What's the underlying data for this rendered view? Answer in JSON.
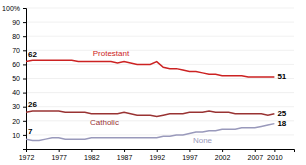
{
  "chart_data": {
    "type": "line",
    "x": [
      1972,
      1973,
      1974,
      1975,
      1976,
      1977,
      1978,
      1979,
      1980,
      1981,
      1982,
      1983,
      1984,
      1985,
      1986,
      1987,
      1988,
      1989,
      1990,
      1991,
      1992,
      1993,
      1994,
      1995,
      1996,
      1997,
      1998,
      1999,
      2000,
      2001,
      2002,
      2003,
      2004,
      2005,
      2006,
      2007,
      2008,
      2009,
      2010
    ],
    "series": [
      {
        "name": "Protestant",
        "color": "#cc2222",
        "values": [
          62,
          63,
          63,
          63,
          63,
          63,
          63,
          63,
          62,
          62,
          62,
          62,
          62,
          62,
          61,
          62,
          61,
          60,
          60,
          60,
          62,
          58,
          57,
          57,
          56,
          55,
          55,
          54,
          53,
          53,
          52,
          52,
          52,
          52,
          51,
          51,
          51,
          51,
          51
        ]
      },
      {
        "name": "Catholic",
        "color": "#993333",
        "values": [
          26,
          27,
          27,
          27,
          27,
          27,
          26,
          26,
          26,
          26,
          25,
          25,
          25,
          25,
          25,
          26,
          25,
          24,
          24,
          24,
          23,
          24,
          25,
          25,
          25,
          26,
          26,
          26,
          27,
          26,
          26,
          26,
          25,
          25,
          25,
          25,
          25,
          24,
          25
        ]
      },
      {
        "name": "None",
        "color": "#9999bb",
        "values": [
          7,
          6,
          6,
          7,
          8,
          8,
          7,
          7,
          7,
          7,
          8,
          8,
          8,
          8,
          8,
          8,
          8,
          8,
          8,
          8,
          8,
          9,
          9,
          10,
          10,
          11,
          12,
          12,
          13,
          13,
          14,
          14,
          14,
          15,
          15,
          15,
          16,
          17,
          18
        ]
      }
    ],
    "xlim": [
      1972,
      2013
    ],
    "xticks": [
      1972,
      1977,
      1982,
      1987,
      1992,
      1997,
      2002,
      2007,
      2010
    ],
    "ylim": [
      0,
      100
    ],
    "yticks": [
      10,
      20,
      30,
      40,
      50,
      60,
      70,
      80,
      90,
      {
        "value": 100,
        "label": "100%"
      }
    ],
    "grid": true
  }
}
